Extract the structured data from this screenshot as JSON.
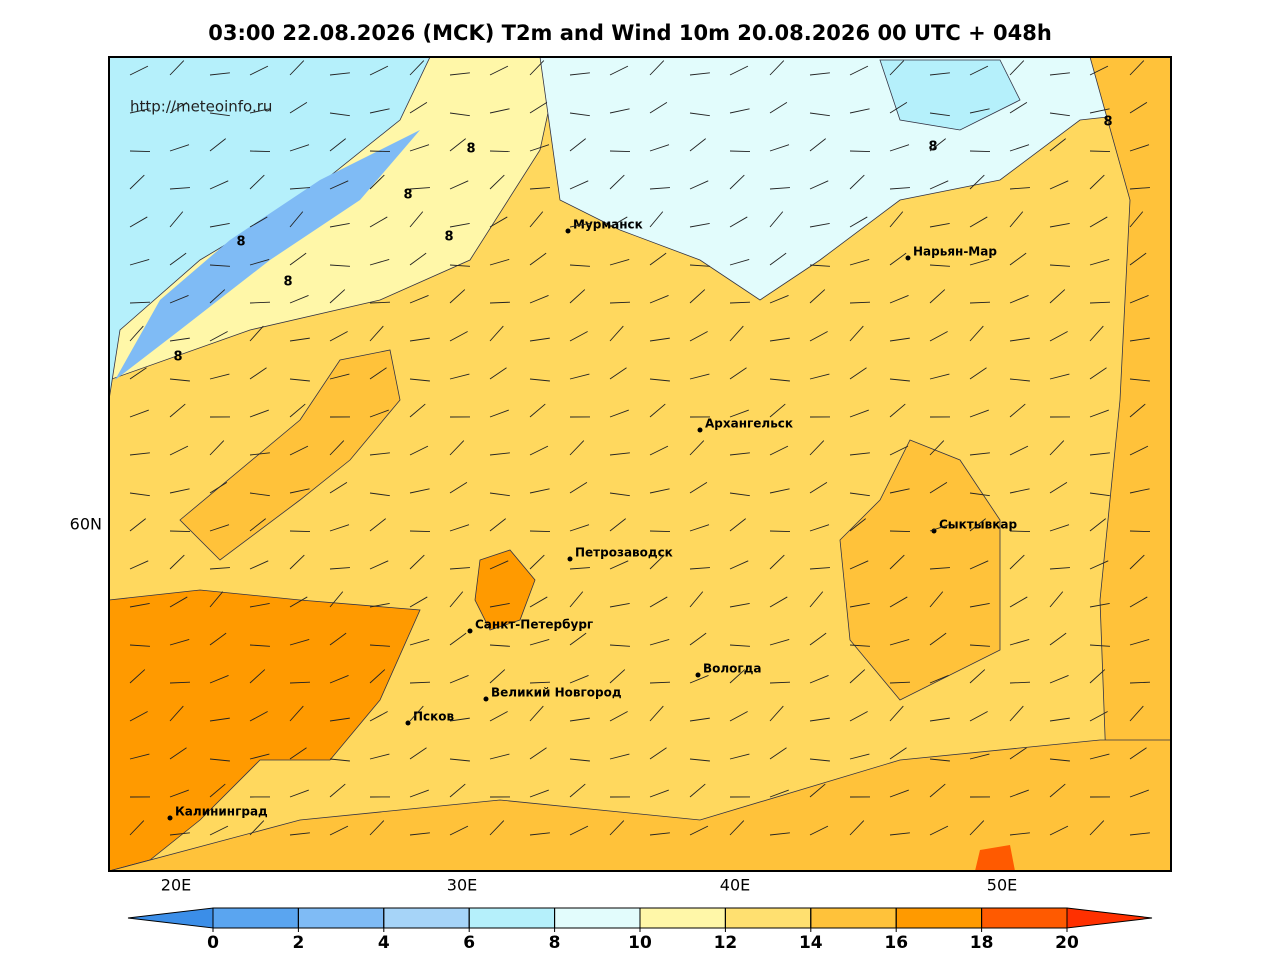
{
  "map": {
    "title": "03:00 22.08.2026 (MCK) T2m and Wind 10m 20.08.2026 00 UTC + 048h",
    "url": "http://meteoinfo.ru",
    "lon_labels": [
      "20E",
      "30E",
      "40E",
      "50E"
    ],
    "lat_labels": [
      "60N"
    ],
    "cities": [
      "Мурманск",
      "Нарьян-Мар",
      "Архангельск",
      "Сыктывкар",
      "Петрозаводск",
      "Санкт-Петербург",
      "Вологда",
      "Великий Новгород",
      "Псков",
      "Калининград"
    ],
    "contour_labels": [
      "8",
      "8",
      "8",
      "8",
      "8",
      "8",
      "8",
      "8"
    ],
    "colorbar": {
      "ticks": [
        0,
        2,
        4,
        6,
        8,
        10,
        12,
        14,
        16,
        18,
        20
      ],
      "colors": [
        "#3b8ee8",
        "#5aa5f0",
        "#7fbbf5",
        "#a6d4f8",
        "#b5f0fb",
        "#e2fcfc",
        "#fff7a8",
        "#ffe070",
        "#ffc23a",
        "#ff9a00",
        "#ff5a00",
        "#ff3000"
      ]
    }
  }
}
